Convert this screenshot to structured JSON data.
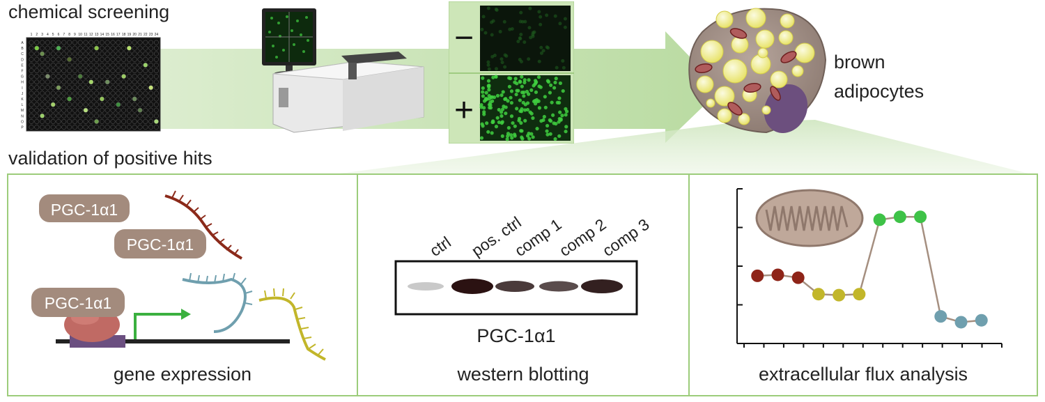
{
  "top": {
    "chemical_screening": "chemical screening",
    "validation": "validation of positive hits",
    "brown_line1": "brown",
    "brown_line2": "adipocytes",
    "minus_sign": "−",
    "plus_sign": "+",
    "plate_cols": [
      "1",
      "2",
      "3",
      "4",
      "5",
      "6",
      "7",
      "8",
      "9",
      "10",
      "11",
      "12",
      "13",
      "14",
      "15",
      "16",
      "17",
      "18",
      "19",
      "20",
      "21",
      "22",
      "23",
      "24"
    ],
    "plate_rows": [
      "A",
      "B",
      "C",
      "D",
      "E",
      "F",
      "G",
      "H",
      "I",
      "J",
      "K",
      "L",
      "M",
      "N",
      "O",
      "P"
    ]
  },
  "panels": {
    "gene_expression": {
      "label": "gene expression",
      "protein_1": "PGC-1α1",
      "protein_2": "PGC-1α1",
      "protein_3": "PGC-1α1"
    },
    "western_blot": {
      "label": "western blotting",
      "target": "PGC-1α1",
      "lanes": [
        "ctrl",
        "pos. ctrl",
        "comp 1",
        "comp 2",
        "comp 3"
      ]
    },
    "flux": {
      "label": "extracellular flux analysis"
    }
  },
  "colors": {
    "accent_green": "#a8d08a",
    "panel_border": "#9ccc7a",
    "protein_fill": "#a38b7d",
    "red_dot": "#8e2418",
    "yellow_dot": "#c2b62a",
    "green_dot": "#3ec247",
    "teal_dot": "#6f9fae"
  },
  "chart_data": {
    "type": "line",
    "title": "",
    "xlabel": "",
    "ylabel": "",
    "grid": false,
    "x": [
      1,
      2,
      3,
      4,
      5,
      6,
      7,
      8,
      9,
      10,
      11,
      12
    ],
    "values": [
      3.0,
      3.05,
      2.9,
      2.05,
      2.0,
      2.05,
      5.9,
      6.05,
      6.05,
      0.9,
      0.6,
      0.7
    ],
    "point_colors": [
      "red",
      "red",
      "red",
      "yellow",
      "yellow",
      "yellow",
      "green",
      "green",
      "green",
      "teal",
      "teal",
      "teal"
    ],
    "ylim": [
      -0.5,
      7.5
    ],
    "xlim": [
      0,
      13
    ],
    "x_ticks": 14,
    "y_ticks": 4
  }
}
